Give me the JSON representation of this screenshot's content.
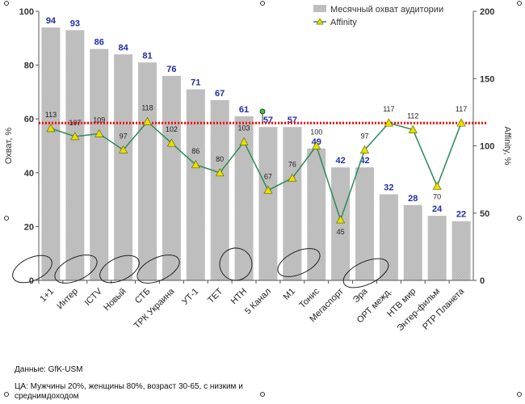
{
  "chart_data": {
    "type": "bar+line",
    "categories": [
      "1+1",
      "Интер",
      "ICTV",
      "Новый",
      "СТБ",
      "ТРК Украина",
      "УТ-1",
      "ТЕТ",
      "НТН",
      "5 Канал",
      "М1",
      "Тонис",
      "Мегаспорт",
      "Эра",
      "ОРТ межд.",
      "НТВ мир",
      "Энтер-фильм",
      "РТР Планета"
    ],
    "series": [
      {
        "name": "Месячный охват аудитории",
        "type": "bar",
        "axis": "left",
        "color": "#c0c0c0",
        "values": [
          94,
          93,
          86,
          84,
          81,
          76,
          71,
          67,
          61,
          57,
          57,
          49,
          42,
          42,
          32,
          28,
          24,
          22
        ]
      },
      {
        "name": "Affinity",
        "type": "line",
        "axis": "right",
        "color": "#2e8b57",
        "marker_color": "#e8e000",
        "values": [
          113,
          107,
          109,
          97,
          118,
          102,
          86,
          80,
          103,
          67,
          76,
          100,
          45,
          97,
          117,
          112,
          70,
          117
        ]
      }
    ],
    "ylabel_left": "Охват, %",
    "ylabel_right": "Affinity, %",
    "ylim_left": [
      0,
      100
    ],
    "ylim_right": [
      0,
      200
    ],
    "yticks_left": [
      "0",
      "20",
      "40",
      "60",
      "80",
      "100"
    ],
    "yticks_right": [
      "0",
      "50",
      "100",
      "150",
      "200"
    ],
    "reference_line": {
      "axis": "right",
      "value": 117,
      "color": "#ff0000",
      "style": "dotted"
    },
    "legend_position": "top-right",
    "grid": false
  },
  "footnotes": {
    "source": "Данные: GfK-USM",
    "target_audience": "ЦА: Мужчины 20%, женщины 80%, возраст 30-65, с низким и среднимдоходом"
  }
}
